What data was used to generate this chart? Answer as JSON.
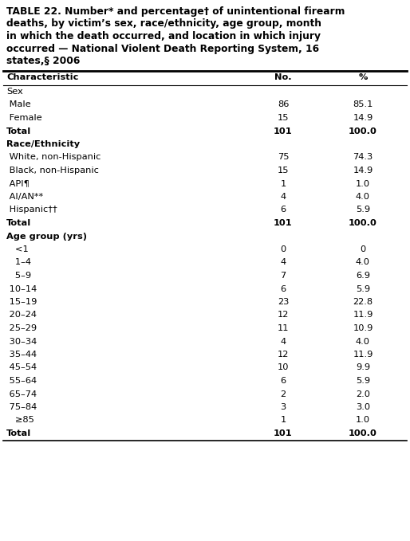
{
  "title_lines": [
    "TABLE 22. Number* and percentage† of unintentional firearm",
    "deaths, by victim’s sex, race/ethnicity, age group, month",
    "in which the death occurred, and location in which injury",
    "occurred — National Violent Death Reporting System, 16",
    "states,§ 2006"
  ],
  "col_header": [
    "Characteristic",
    "No.",
    "%"
  ],
  "sections": [
    {
      "header": "Sex",
      "header_bold": false,
      "rows": [
        {
          "label": " Male",
          "no": "86",
          "pct": "85.1"
        },
        {
          "label": " Female",
          "no": "15",
          "pct": "14.9"
        }
      ],
      "total": {
        "label": "Total",
        "no": "101",
        "pct": "100.0"
      }
    },
    {
      "header": "Race/Ethnicity",
      "header_bold": true,
      "rows": [
        {
          "label": " White, non-Hispanic",
          "no": "75",
          "pct": "74.3"
        },
        {
          "label": " Black, non-Hispanic",
          "no": "15",
          "pct": "14.9"
        },
        {
          "label": " API¶",
          "no": "1",
          "pct": "1.0"
        },
        {
          "label": " AI/AN**",
          "no": "4",
          "pct": "4.0"
        },
        {
          "label": " Hispanic††",
          "no": "6",
          "pct": "5.9"
        }
      ],
      "total": {
        "label": "Total",
        "no": "101",
        "pct": "100.0"
      }
    },
    {
      "header": "Age group (yrs)",
      "header_bold": true,
      "rows": [
        {
          "label": "   <1",
          "no": "0",
          "pct": "0"
        },
        {
          "label": "   1–4",
          "no": "4",
          "pct": "4.0"
        },
        {
          "label": "   5–9",
          "no": "7",
          "pct": "6.9"
        },
        {
          "label": " 10–14",
          "no": "6",
          "pct": "5.9"
        },
        {
          "label": " 15–19",
          "no": "23",
          "pct": "22.8"
        },
        {
          "label": " 20–24",
          "no": "12",
          "pct": "11.9"
        },
        {
          "label": " 25–29",
          "no": "11",
          "pct": "10.9"
        },
        {
          "label": " 30–34",
          "no": "4",
          "pct": "4.0"
        },
        {
          "label": " 35–44",
          "no": "12",
          "pct": "11.9"
        },
        {
          "label": " 45–54",
          "no": "10",
          "pct": "9.9"
        },
        {
          "label": " 55–64",
          "no": "6",
          "pct": "5.9"
        },
        {
          "label": " 65–74",
          "no": "2",
          "pct": "2.0"
        },
        {
          "label": " 75–84",
          "no": "3",
          "pct": "3.0"
        },
        {
          "label": "   ≥85",
          "no": "1",
          "pct": "1.0"
        }
      ],
      "total": {
        "label": "Total",
        "no": "101",
        "pct": "100.0"
      }
    }
  ],
  "bg_color": "#ffffff",
  "text_color": "#000000",
  "font_size": 8.2,
  "title_font_size": 8.8
}
